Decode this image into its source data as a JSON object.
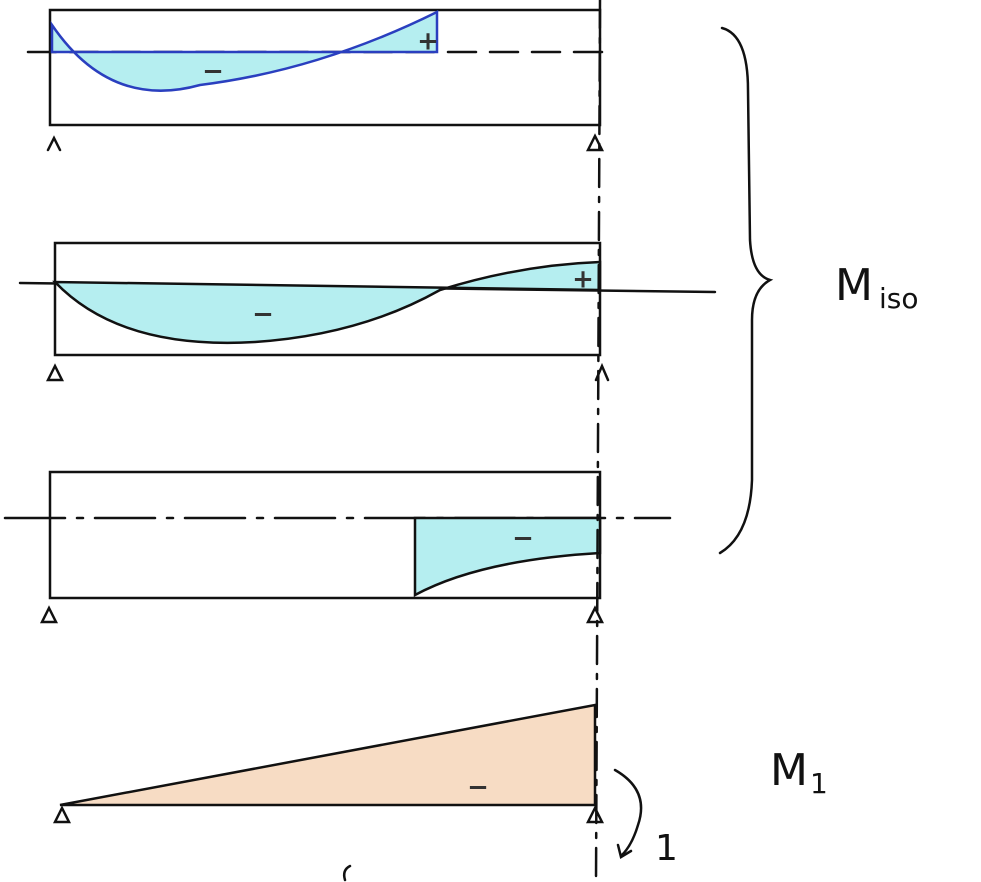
{
  "diagrams": [
    {
      "signs": [
        "+",
        "−"
      ]
    },
    {
      "signs": [
        "−",
        "+"
      ]
    },
    {
      "signs": [
        "−"
      ]
    },
    {
      "signs": [
        "−"
      ]
    }
  ],
  "labels": {
    "m_iso": {
      "main": "M",
      "sub": "iso"
    },
    "m_1": {
      "main": "M",
      "sub": "1"
    },
    "moment": "1"
  }
}
